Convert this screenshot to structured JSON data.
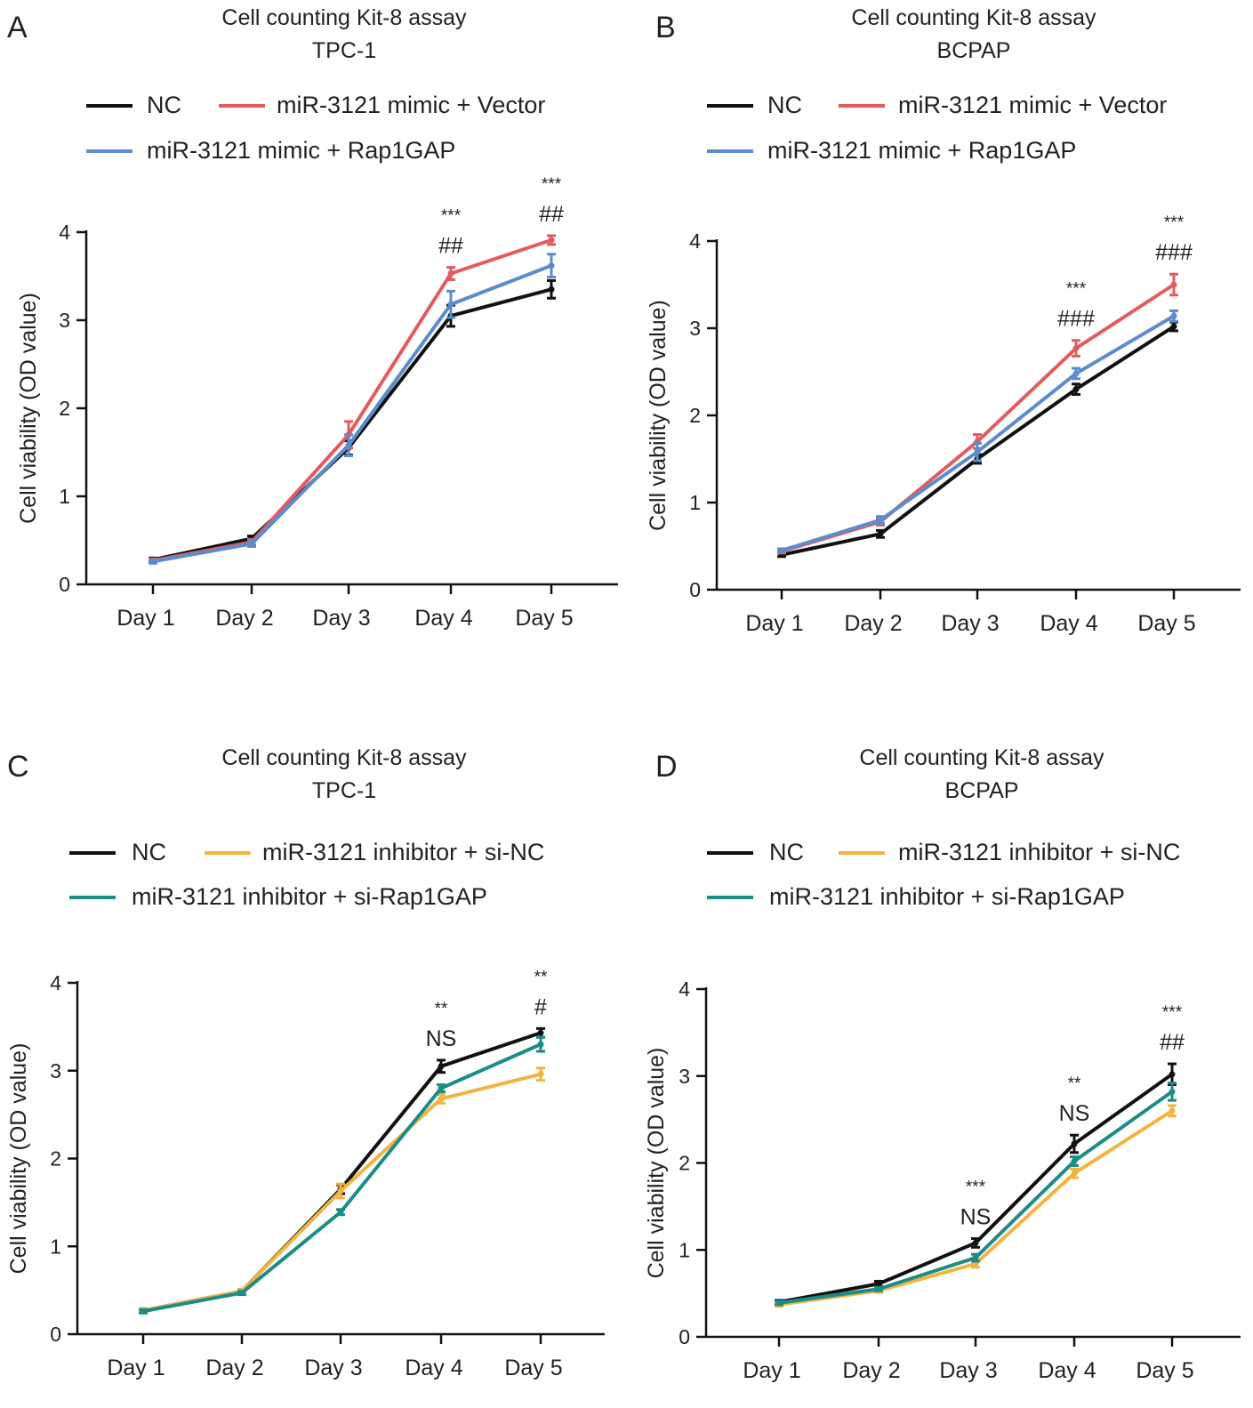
{
  "panels": [
    {
      "letter": "A",
      "title": "Cell counting Kit-8 assay",
      "subtitle": "TPC-1",
      "chart_data": {
        "type": "line",
        "categories": [
          "Day 1",
          "Day 2",
          "Day 3",
          "Day 4",
          "Day 5"
        ],
        "ylabel": "Cell viability (OD value)",
        "xlabel": "",
        "ylim": [
          0,
          4
        ],
        "yticks": [
          "0",
          "1",
          "2",
          "3",
          "4"
        ],
        "grid": false,
        "legend_position": "top",
        "series": [
          {
            "name": "NC",
            "color": "#111111",
            "values": [
              0.28,
              0.52,
              1.55,
              3.05,
              3.35
            ],
            "errors": [
              0.02,
              0.03,
              0.08,
              0.12,
              0.1
            ]
          },
          {
            "name": "miR-3121 mimic + Vector",
            "color": "#e35b5d",
            "values": [
              0.27,
              0.48,
              1.7,
              3.53,
              3.91
            ],
            "errors": [
              0.02,
              0.03,
              0.15,
              0.07,
              0.05
            ]
          },
          {
            "name": "miR-3121 mimic + Rap1GAP",
            "color": "#5b8ccd",
            "values": [
              0.26,
              0.46,
              1.58,
              3.18,
              3.62
            ],
            "errors": [
              0.02,
              0.03,
              0.12,
              0.15,
              0.13
            ]
          }
        ],
        "annotations": [
          {
            "category": "Day 4",
            "stars": "***",
            "hash": "##"
          },
          {
            "category": "Day 5",
            "stars": "***",
            "hash": "##"
          }
        ]
      }
    },
    {
      "letter": "B",
      "title": "Cell counting Kit-8 assay",
      "subtitle": "BCPAP",
      "chart_data": {
        "type": "line",
        "categories": [
          "Day 1",
          "Day 2",
          "Day 3",
          "Day 4",
          "Day 5"
        ],
        "ylabel": "Cell viability (OD value)",
        "xlabel": "",
        "ylim": [
          0,
          4
        ],
        "yticks": [
          "0",
          "1",
          "2",
          "3",
          "4"
        ],
        "grid": false,
        "legend_position": "top",
        "series": [
          {
            "name": "NC",
            "color": "#111111",
            "values": [
              0.4,
              0.64,
              1.5,
              2.3,
              3.02
            ],
            "errors": [
              0.02,
              0.04,
              0.05,
              0.06,
              0.05
            ]
          },
          {
            "name": "miR-3121 mimic + Vector",
            "color": "#e35b5d",
            "values": [
              0.44,
              0.78,
              1.7,
              2.77,
              3.5
            ],
            "errors": [
              0.02,
              0.04,
              0.08,
              0.09,
              0.12
            ]
          },
          {
            "name": "miR-3121 mimic + Rap1GAP",
            "color": "#5b8ccd",
            "values": [
              0.45,
              0.8,
              1.58,
              2.48,
              3.14
            ],
            "errors": [
              0.02,
              0.04,
              0.1,
              0.06,
              0.06
            ]
          }
        ],
        "annotations": [
          {
            "category": "Day 4",
            "stars": "***",
            "hash": "###"
          },
          {
            "category": "Day 5",
            "stars": "***",
            "hash": "###"
          }
        ]
      }
    },
    {
      "letter": "C",
      "title": "Cell counting Kit-8 assay",
      "subtitle": "TPC-1",
      "chart_data": {
        "type": "line",
        "categories": [
          "Day 1",
          "Day 2",
          "Day 3",
          "Day 4",
          "Day 5"
        ],
        "ylabel": "Cell viability (OD value)",
        "xlabel": "",
        "ylim": [
          0,
          4
        ],
        "yticks": [
          "0",
          "1",
          "2",
          "3",
          "4"
        ],
        "grid": false,
        "legend_position": "top",
        "series": [
          {
            "name": "NC",
            "color": "#111111",
            "values": [
              0.27,
              0.49,
              1.65,
              3.05,
              3.43
            ],
            "errors": [
              0.02,
              0.02,
              0.05,
              0.07,
              0.05
            ]
          },
          {
            "name": "miR-3121 inhibitor + si-NC",
            "color": "#f2b441",
            "values": [
              0.27,
              0.49,
              1.63,
              2.68,
              2.96
            ],
            "errors": [
              0.02,
              0.02,
              0.08,
              0.05,
              0.07
            ]
          },
          {
            "name": "miR-3121 inhibitor + si-Rap1GAP",
            "color": "#1b8c88",
            "values": [
              0.26,
              0.47,
              1.39,
              2.8,
              3.3
            ],
            "errors": [
              0.02,
              0.02,
              0.03,
              0.04,
              0.08
            ]
          }
        ],
        "annotations": [
          {
            "category": "Day 4",
            "stars": "**",
            "hash": "NS"
          },
          {
            "category": "Day 5",
            "stars": "**",
            "hash": "#"
          }
        ]
      }
    },
    {
      "letter": "D",
      "title": "Cell counting Kit-8 assay",
      "subtitle": "BCPAP",
      "chart_data": {
        "type": "line",
        "categories": [
          "Day 1",
          "Day 2",
          "Day 3",
          "Day 4",
          "Day 5"
        ],
        "ylabel": "Cell viability (OD value)",
        "xlabel": "",
        "ylim": [
          0,
          4
        ],
        "yticks": [
          "0",
          "1",
          "2",
          "3",
          "4"
        ],
        "grid": false,
        "legend_position": "top",
        "series": [
          {
            "name": "NC",
            "color": "#111111",
            "values": [
              0.4,
              0.61,
              1.08,
              2.22,
              3.02
            ],
            "errors": [
              0.02,
              0.03,
              0.05,
              0.1,
              0.12
            ]
          },
          {
            "name": "miR-3121 inhibitor + si-NC",
            "color": "#f2b441",
            "values": [
              0.37,
              0.53,
              0.84,
              1.88,
              2.6
            ],
            "errors": [
              0.02,
              0.02,
              0.04,
              0.05,
              0.06
            ]
          },
          {
            "name": "miR-3121 inhibitor + si-Rap1GAP",
            "color": "#1b8c88",
            "values": [
              0.39,
              0.55,
              0.91,
              2.02,
              2.82
            ],
            "errors": [
              0.02,
              0.02,
              0.04,
              0.05,
              0.1
            ]
          }
        ],
        "annotations": [
          {
            "category": "Day 3",
            "stars": "***",
            "hash": "NS"
          },
          {
            "category": "Day 4",
            "stars": "**",
            "hash": "NS"
          },
          {
            "category": "Day 5",
            "stars": "***",
            "hash": "##"
          }
        ]
      }
    }
  ]
}
